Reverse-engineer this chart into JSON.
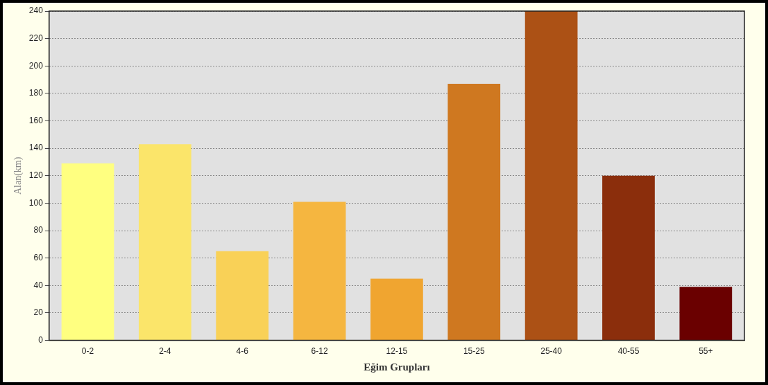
{
  "chart_data": {
    "type": "bar",
    "xlabel": "Eğim Grupları",
    "ylabel": "Alan(km)",
    "categories": [
      "0-2",
      "2-4",
      "4-6",
      "6-12",
      "12-15",
      "15-25",
      "25-40",
      "40-55",
      "55+"
    ],
    "values": [
      129,
      143,
      65,
      101,
      45,
      187,
      240,
      120,
      39
    ],
    "colors": [
      "#ffff80",
      "#fbe56a",
      "#f9d157",
      "#f5b640",
      "#f0a530",
      "#cf7820",
      "#ac5115",
      "#8b2e0c",
      "#6a0000"
    ],
    "ylim": [
      0,
      240
    ],
    "yticks": [
      0,
      20,
      40,
      60,
      80,
      100,
      120,
      140,
      160,
      180,
      200,
      220,
      240
    ],
    "grid": "y"
  }
}
